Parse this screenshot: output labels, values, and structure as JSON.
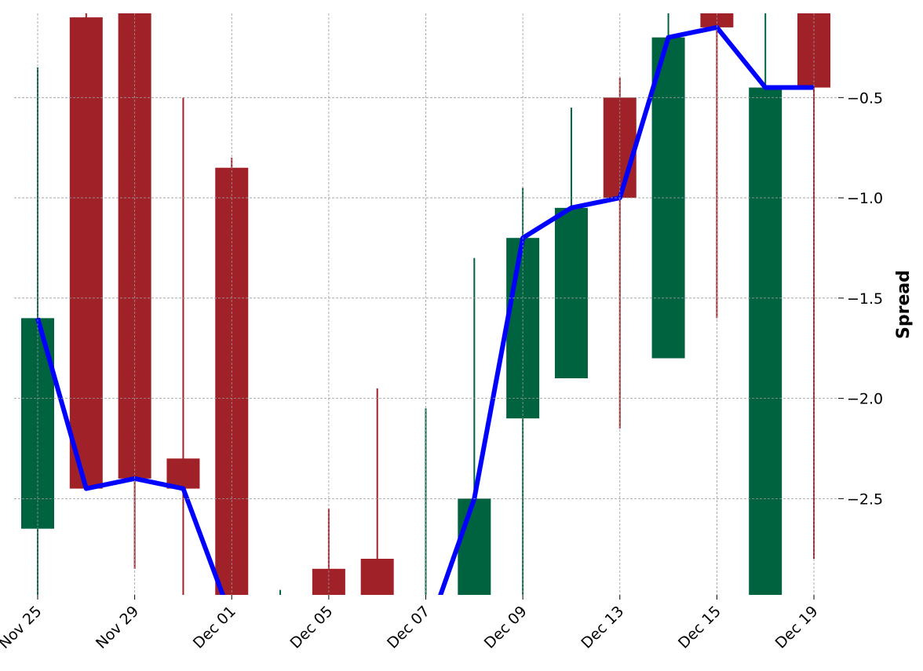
{
  "chart_data": {
    "type": "candlestick",
    "y_label": "Spread",
    "categories": [
      "Nov 25",
      null,
      "Nov 29",
      null,
      "Dec 01",
      null,
      "Dec 05",
      null,
      "Dec 07",
      null,
      "Dec 09",
      null,
      "Dec 13",
      null,
      "Dec 15",
      null,
      "Dec 19"
    ],
    "open": [
      -2.65,
      -0.1,
      -0.05,
      -2.3,
      -0.85,
      -3.3,
      -2.85,
      -2.8,
      -3.3,
      -3.05,
      -2.1,
      -1.9,
      -0.5,
      -1.8,
      -0.05,
      -3.0,
      -0.05
    ],
    "high": [
      -0.35,
      -0.05,
      -0.02,
      -0.5,
      -0.8,
      -2.955,
      -2.55,
      -1.95,
      -2.05,
      -1.3,
      -0.95,
      -0.55,
      -0.4,
      -0.05,
      -0.02,
      -0.05,
      -0.02
    ],
    "low": [
      -3.0,
      -2.45,
      -2.85,
      -3.0,
      -3.3,
      -3.4,
      -3.2,
      -3.2,
      -3.4,
      -3.1,
      -3.0,
      -1.9,
      -2.15,
      -1.8,
      -1.6,
      -3.1,
      -2.8
    ],
    "close": [
      -1.6,
      -2.45,
      -2.4,
      -2.45,
      -3.1,
      -3.2,
      -3.1,
      -3.05,
      -3.19,
      -2.5,
      -1.2,
      -1.05,
      -1.0,
      -0.2,
      -0.15,
      -0.45,
      -0.45
    ],
    "up_color": "#006340",
    "down_color": "#a02128",
    "line_color": "#0000ff",
    "ylim": [
      -2.98,
      -0.08
    ],
    "yticks": [
      {
        "value": -2.5,
        "label": "−2.5"
      },
      {
        "value": -2.0,
        "label": "−2.0"
      },
      {
        "value": -1.5,
        "label": "−1.5"
      },
      {
        "value": -1.0,
        "label": "−1.0"
      },
      {
        "value": -0.5,
        "label": "−0.5"
      }
    ],
    "grid": true
  }
}
